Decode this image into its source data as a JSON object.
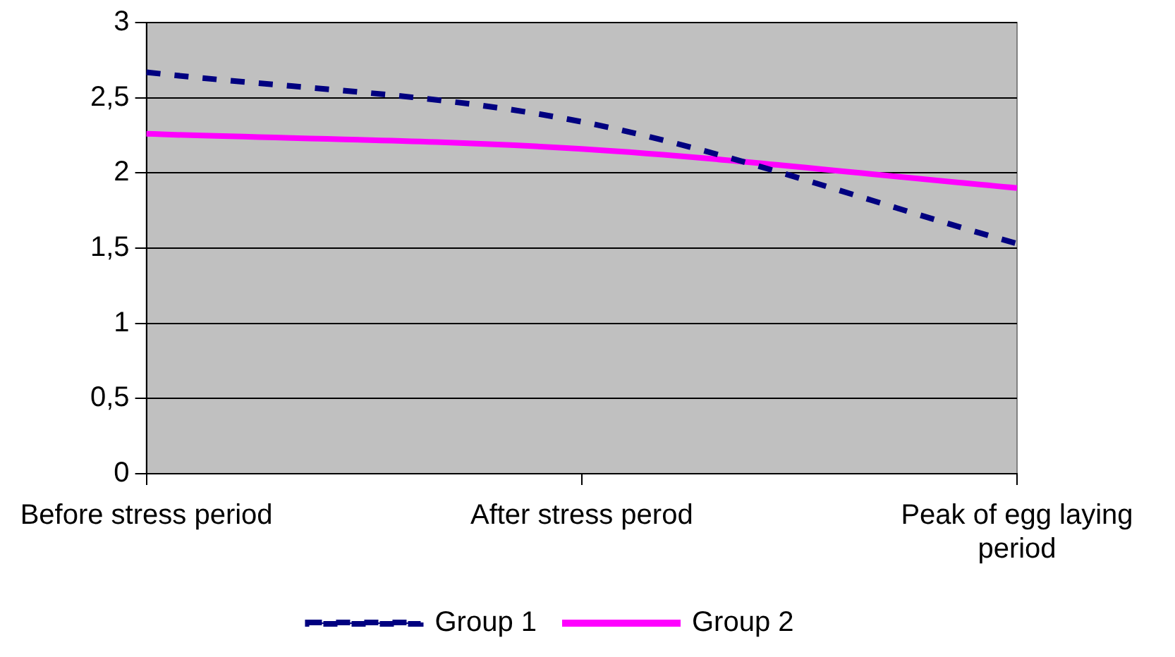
{
  "chart_data": {
    "type": "line",
    "categories": [
      "Before stress period",
      "After stress perod",
      "Peak of egg laying period"
    ],
    "series": [
      {
        "name": "Group 1",
        "color": "#000080",
        "values": [
          2.67,
          2.34,
          1.53
        ],
        "line_style": "dashed"
      },
      {
        "name": "Group 2",
        "color": "#ff00ff",
        "values": [
          2.26,
          2.16,
          1.9
        ],
        "line_style": "solid"
      }
    ],
    "ylim": [
      0,
      3
    ],
    "yticks": [
      0,
      {
        "value": 0.5,
        "label": "0,5"
      },
      1,
      {
        "value": 1.5,
        "label": "1,5"
      },
      2,
      {
        "value": 2.5,
        "label": "2,5"
      },
      3
    ],
    "grid": "y",
    "legend": "bottom",
    "marker": "none"
  }
}
